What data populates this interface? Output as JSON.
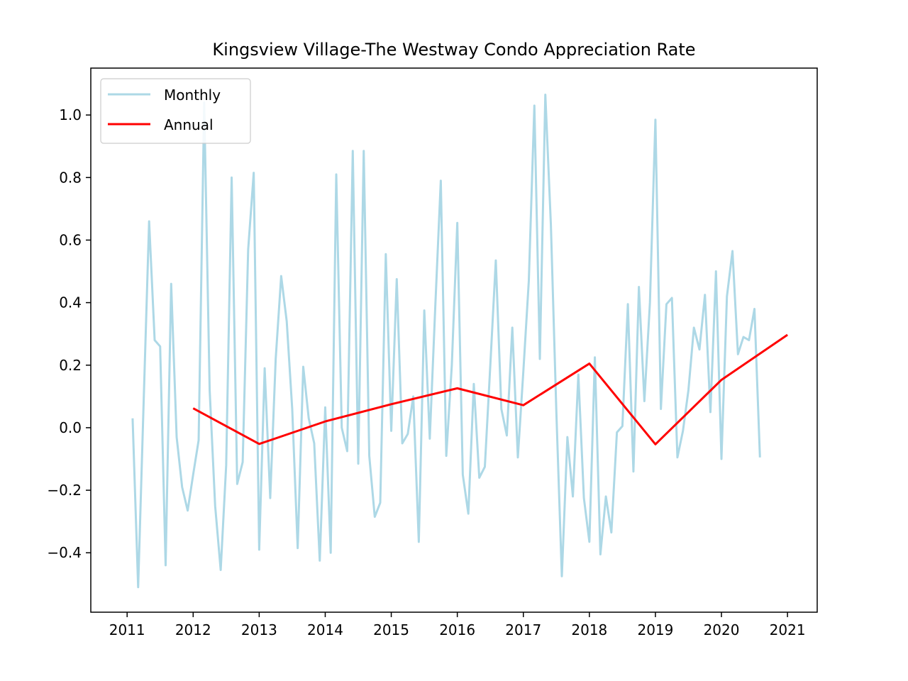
{
  "chart_data": {
    "type": "line",
    "title": "Kingsview Village-The Westway Condo Appreciation Rate",
    "xlabel": "",
    "ylabel": "",
    "xlim": [
      2010.45,
      2021.45
    ],
    "ylim": [
      -0.59,
      1.15
    ],
    "x_ticks": [
      "2011",
      "2012",
      "2013",
      "2014",
      "2015",
      "2016",
      "2017",
      "2018",
      "2019",
      "2020",
      "2021"
    ],
    "y_ticks": [
      "−0.4",
      "−0.2",
      "0.0",
      "0.2",
      "0.4",
      "0.6",
      "0.8",
      "1.0"
    ],
    "y_tick_values": [
      -0.4,
      -0.2,
      0.0,
      0.2,
      0.4,
      0.6,
      0.8,
      1.0
    ],
    "grid": false,
    "legend_position": "upper-left",
    "series": [
      {
        "name": "Monthly",
        "color": "#add8e6",
        "x": [
          2011.083,
          2011.167,
          2011.25,
          2011.333,
          2011.417,
          2011.5,
          2011.583,
          2011.667,
          2011.75,
          2011.833,
          2011.917,
          2012.0,
          2012.083,
          2012.167,
          2012.25,
          2012.333,
          2012.417,
          2012.5,
          2012.583,
          2012.667,
          2012.75,
          2012.833,
          2012.917,
          2013.0,
          2013.083,
          2013.167,
          2013.25,
          2013.333,
          2013.417,
          2013.5,
          2013.583,
          2013.667,
          2013.75,
          2013.833,
          2013.917,
          2014.0,
          2014.083,
          2014.167,
          2014.25,
          2014.333,
          2014.417,
          2014.5,
          2014.583,
          2014.667,
          2014.75,
          2014.833,
          2014.917,
          2015.0,
          2015.083,
          2015.167,
          2015.25,
          2015.333,
          2015.417,
          2015.5,
          2015.583,
          2015.667,
          2015.75,
          2015.833,
          2015.917,
          2016.0,
          2016.083,
          2016.167,
          2016.25,
          2016.333,
          2016.417,
          2016.5,
          2016.583,
          2016.667,
          2016.75,
          2016.833,
          2016.917,
          2017.0,
          2017.083,
          2017.167,
          2017.25,
          2017.333,
          2017.417,
          2017.5,
          2017.583,
          2017.667,
          2017.75,
          2017.833,
          2017.917,
          2018.0,
          2018.083,
          2018.167,
          2018.25,
          2018.333,
          2018.417,
          2018.5,
          2018.583,
          2018.667,
          2018.75,
          2018.833,
          2018.917,
          2019.0,
          2019.083,
          2019.167,
          2019.25,
          2019.333,
          2019.417,
          2019.5,
          2019.583,
          2019.667,
          2019.75,
          2019.833,
          2019.917,
          2020.0,
          2020.083,
          2020.167,
          2020.25,
          2020.333,
          2020.417,
          2020.5,
          2020.583
        ],
        "values": [
          0.03,
          -0.51,
          0.08,
          0.66,
          0.28,
          0.26,
          -0.44,
          0.46,
          -0.03,
          -0.19,
          -0.265,
          -0.15,
          -0.04,
          1.04,
          0.12,
          -0.25,
          -0.455,
          -0.12,
          0.8,
          -0.18,
          -0.11,
          0.57,
          0.815,
          -0.39,
          0.19,
          -0.225,
          0.22,
          0.485,
          0.34,
          0.06,
          -0.385,
          0.195,
          0.03,
          -0.05,
          -0.425,
          0.065,
          -0.4,
          0.81,
          0.0,
          -0.075,
          0.885,
          -0.115,
          0.885,
          -0.09,
          -0.285,
          -0.24,
          0.555,
          -0.01,
          0.475,
          -0.05,
          -0.02,
          0.1,
          -0.365,
          0.375,
          -0.035,
          0.39,
          0.79,
          -0.09,
          0.2,
          0.655,
          -0.15,
          -0.275,
          0.14,
          -0.16,
          -0.125,
          0.2,
          0.535,
          0.06,
          -0.025,
          0.32,
          -0.095,
          0.18,
          0.47,
          1.03,
          0.22,
          1.065,
          0.65,
          0.05,
          -0.475,
          -0.03,
          -0.22,
          0.17,
          -0.225,
          -0.365,
          0.225,
          -0.405,
          -0.22,
          -0.335,
          -0.015,
          0.005,
          0.395,
          -0.14,
          0.45,
          0.085,
          0.4,
          0.985,
          0.06,
          0.395,
          0.415,
          -0.095,
          -0.01,
          0.12,
          0.32,
          0.25,
          0.425,
          0.05,
          0.5,
          -0.1,
          0.42,
          0.565,
          0.235,
          0.29,
          0.28,
          0.38,
          -0.095
        ]
      },
      {
        "name": "Annual",
        "color": "#ff0000",
        "x": [
          2012,
          2013,
          2014,
          2015,
          2016,
          2017,
          2018,
          2019,
          2020,
          2021
        ],
        "values": [
          0.062,
          -0.052,
          0.02,
          0.075,
          0.126,
          0.072,
          0.205,
          -0.053,
          0.153,
          0.297
        ]
      }
    ]
  }
}
